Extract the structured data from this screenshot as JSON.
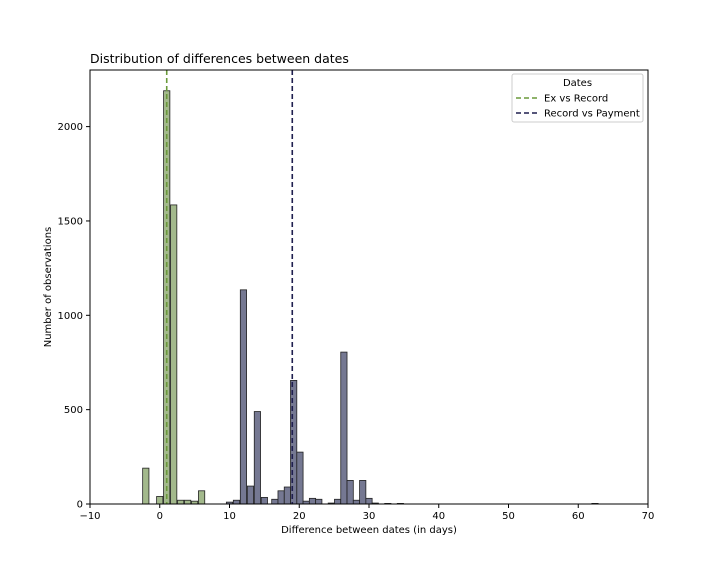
{
  "chart_data": {
    "type": "bar",
    "title": "Distribution of differences between dates",
    "xlabel": "Difference between dates (in days)",
    "ylabel": "Number of observations",
    "xlim": [
      -10,
      70
    ],
    "ylim": [
      0,
      2300
    ],
    "xticks": [
      -10,
      0,
      10,
      20,
      30,
      40,
      50,
      60,
      70
    ],
    "yticks": [
      0,
      500,
      1000,
      1500,
      2000
    ],
    "grid": false,
    "legend": {
      "title": "Dates",
      "placement": "top-right"
    },
    "bin_width": 0.9,
    "series": [
      {
        "name": "Ex vs Record",
        "line_color": "#6a9a3a",
        "bar_color": "#a3b98c",
        "mean": 1.0,
        "bins": [
          {
            "x": -2,
            "count": 190
          },
          {
            "x": 0,
            "count": 40
          },
          {
            "x": 1,
            "count": 2190
          },
          {
            "x": 2,
            "count": 1585
          },
          {
            "x": 3,
            "count": 20
          },
          {
            "x": 4,
            "count": 20
          },
          {
            "x": 5,
            "count": 15
          },
          {
            "x": 6,
            "count": 70
          }
        ]
      },
      {
        "name": "Record vs Payment",
        "line_color": "#1f1f4f",
        "bar_color": "#757892",
        "mean": 19.0,
        "bins": [
          {
            "x": 10,
            "count": 10
          },
          {
            "x": 11,
            "count": 20
          },
          {
            "x": 12,
            "count": 1135
          },
          {
            "x": 13,
            "count": 95
          },
          {
            "x": 14,
            "count": 490
          },
          {
            "x": 15,
            "count": 35
          },
          {
            "x": 16.5,
            "count": 25
          },
          {
            "x": 17.4,
            "count": 70
          },
          {
            "x": 18.3,
            "count": 90
          },
          {
            "x": 19.2,
            "count": 655
          },
          {
            "x": 20.1,
            "count": 275
          },
          {
            "x": 21,
            "count": 15
          },
          {
            "x": 21.9,
            "count": 30
          },
          {
            "x": 22.8,
            "count": 25
          },
          {
            "x": 24.6,
            "count": 5
          },
          {
            "x": 25.5,
            "count": 25
          },
          {
            "x": 26.4,
            "count": 805
          },
          {
            "x": 27.3,
            "count": 125
          },
          {
            "x": 28.2,
            "count": 20
          },
          {
            "x": 29.1,
            "count": 125
          },
          {
            "x": 30,
            "count": 30
          },
          {
            "x": 30.9,
            "count": 5
          },
          {
            "x": 32.7,
            "count": 3
          },
          {
            "x": 34.5,
            "count": 3
          },
          {
            "x": 62.4,
            "count": 3
          }
        ]
      }
    ]
  }
}
